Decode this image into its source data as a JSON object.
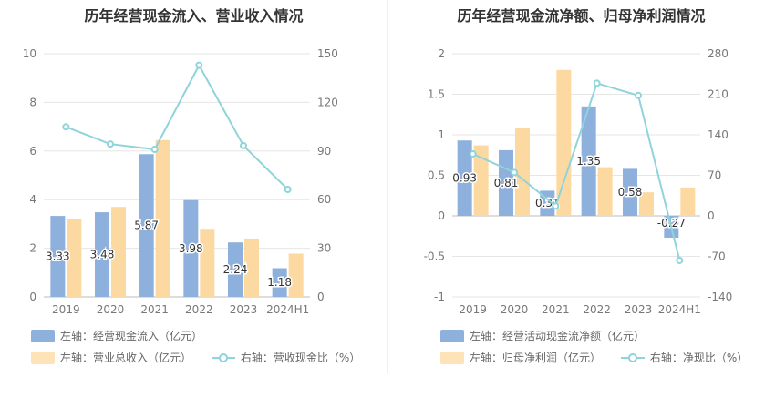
{
  "chart_data": [
    {
      "type": "bar",
      "title": "历年经营现金流入、营业收入情况",
      "categories": [
        "2019",
        "2020",
        "2021",
        "2022",
        "2023",
        "2024H1"
      ],
      "left_axis": {
        "ylim": [
          0,
          10
        ],
        "ticks": [
          "0",
          "2",
          "4",
          "6",
          "8",
          "10"
        ]
      },
      "right_axis": {
        "ylim": [
          0,
          150
        ],
        "ticks": [
          "0",
          "30",
          "60",
          "90",
          "120",
          "150"
        ]
      },
      "grid": true,
      "legend_position": "bottom-left",
      "series": [
        {
          "name": "左轴：经营现金流入（亿元）",
          "type": "bar",
          "axis": "left",
          "color": "#8eb0dc",
          "values": [
            3.33,
            3.48,
            5.87,
            3.98,
            2.24,
            1.18
          ],
          "labels": [
            "3.33",
            "3.48",
            "5.87",
            "3.98",
            "2.24",
            "1.18"
          ]
        },
        {
          "name": "左轴：营业总收入（亿元）",
          "type": "bar",
          "axis": "left",
          "color": "#fcd9a0",
          "values": [
            3.2,
            3.7,
            6.45,
            2.8,
            2.4,
            1.78
          ]
        },
        {
          "name": "右轴：营收现金比（%）",
          "type": "line",
          "axis": "right",
          "color": "#8fd4db",
          "values": [
            104.9,
            94.3,
            91.0,
            142.9,
            93.3,
            66.3
          ]
        }
      ]
    },
    {
      "type": "bar",
      "title": "历年经营现金流净额、归母净利润情况",
      "categories": [
        "2019",
        "2020",
        "2021",
        "2022",
        "2023",
        "2024H1"
      ],
      "left_axis": {
        "ylim": [
          -1,
          2
        ],
        "ticks": [
          "-1",
          "-0.5",
          "0",
          "0.5",
          "1",
          "1.5",
          "2"
        ]
      },
      "right_axis": {
        "ylim": [
          -140,
          280
        ],
        "ticks": [
          "-140",
          "-70",
          "0",
          "70",
          "140",
          "210",
          "280"
        ]
      },
      "grid": true,
      "legend_position": "bottom-left",
      "series": [
        {
          "name": "左轴：经营活动现金流净额（亿元）",
          "type": "bar",
          "axis": "left",
          "color": "#8eb0dc",
          "values": [
            0.93,
            0.81,
            0.31,
            1.35,
            0.58,
            -0.27
          ],
          "labels": [
            "0.93",
            "0.81",
            "0.31",
            "1.35",
            "0.58",
            "-0.27"
          ]
        },
        {
          "name": "左轴：归母净利润（亿元）",
          "type": "bar",
          "axis": "left",
          "color": "#fcd9a0",
          "values": [
            0.87,
            1.08,
            1.8,
            0.6,
            0.29,
            0.35
          ]
        },
        {
          "name": "右轴：净现比（%）",
          "type": "line",
          "axis": "right",
          "color": "#8fd4db",
          "values": [
            107,
            75,
            17,
            229,
            208,
            -77
          ]
        }
      ]
    }
  ]
}
